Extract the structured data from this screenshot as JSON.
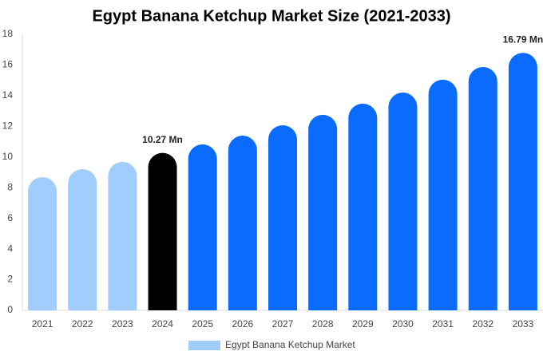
{
  "chart_data": {
    "type": "bar",
    "title": "Egypt Banana Ketchup Market Size (2021-2033)",
    "categories": [
      "2021",
      "2022",
      "2023",
      "2024",
      "2025",
      "2026",
      "2027",
      "2028",
      "2029",
      "2030",
      "2031",
      "2032",
      "2033"
    ],
    "series": [
      {
        "name": "Egypt Banana Ketchup Market",
        "color": "#a0cdfc",
        "values": [
          8.69,
          9.21,
          9.68,
          10.27,
          10.82,
          11.39,
          12.07,
          12.75,
          13.48,
          14.2,
          15.04,
          15.87,
          16.79
        ],
        "value_labels": [
          null,
          null,
          null,
          "10.27 Mn",
          null,
          null,
          null,
          null,
          null,
          null,
          null,
          null,
          "16.79 Mn"
        ],
        "bar_colors": [
          "#a0cdfc",
          "#a0cdfc",
          "#a0cdfc",
          "#000000",
          "#0a6cff",
          "#0a6cff",
          "#0a6cff",
          "#0a6cff",
          "#0a6cff",
          "#0a6cff",
          "#0a6cff",
          "#0a6cff",
          "#0a6cff"
        ]
      }
    ],
    "ylim": [
      0,
      18
    ],
    "yticks": [
      0,
      2,
      4,
      6,
      8,
      10,
      12,
      14,
      16,
      18
    ],
    "grid": false,
    "legend": "bottom"
  }
}
